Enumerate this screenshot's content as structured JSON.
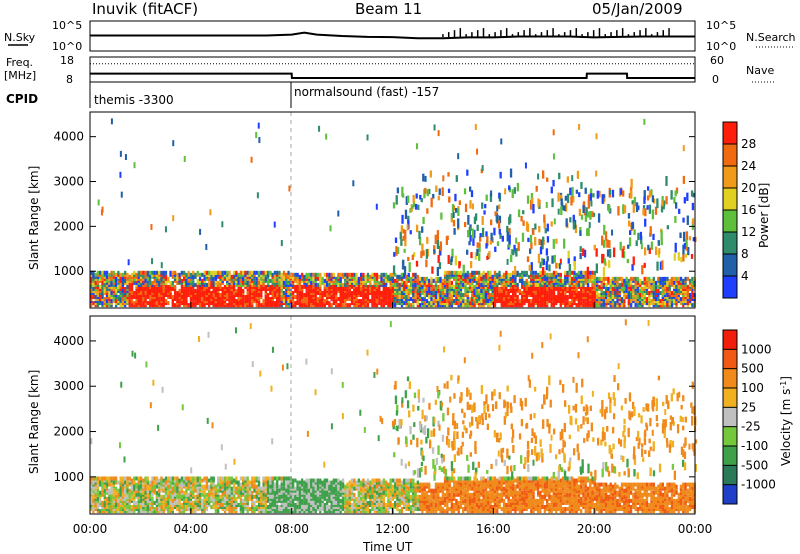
{
  "header": {
    "site": "Inuvik (fitACF)",
    "beam": "Beam 11",
    "date": "05/Jan/2009"
  },
  "chart_data": [
    {
      "type": "line",
      "panel": "noise",
      "left_label": "N.Sky",
      "right_label": "N.Search",
      "left_ticks": [
        "10^5",
        "10^0"
      ],
      "right_ticks": [
        "10^5",
        "10^0"
      ],
      "x_hours": [
        0,
        1,
        2,
        3,
        4,
        5,
        6,
        7,
        8,
        8.5,
        9,
        10,
        11,
        12,
        13,
        14,
        15,
        16,
        17,
        18,
        19,
        20,
        21,
        22,
        23,
        24
      ],
      "sky_level": [
        0.52,
        0.52,
        0.52,
        0.52,
        0.52,
        0.52,
        0.52,
        0.52,
        0.55,
        0.62,
        0.55,
        0.5,
        0.47,
        0.46,
        0.42,
        0.42,
        0.45,
        0.45,
        0.48,
        0.48,
        0.48,
        0.45,
        0.47,
        0.48,
        0.48,
        0.48
      ]
    },
    {
      "type": "line",
      "panel": "frequency",
      "left_label": "Freq.",
      "left_unit": "[MHz]",
      "right_label": "Nave",
      "left_ticks": [
        "18",
        "8"
      ],
      "right_ticks": [
        "60",
        "0"
      ],
      "x_hours": [
        0,
        8,
        8.01,
        19.7,
        19.71,
        21.3,
        21.31,
        24
      ],
      "freq_mhz": [
        11.2,
        11.2,
        9.3,
        9.3,
        11.2,
        11.2,
        9.3,
        9.3
      ],
      "nave": [
        45,
        45,
        45,
        45,
        45,
        45,
        45,
        45
      ]
    },
    {
      "type": "table",
      "panel": "cpid",
      "label": "CPID",
      "segments": [
        {
          "start_hour": 0,
          "end_hour": 8,
          "name": "themis -3300"
        },
        {
          "start_hour": 8,
          "end_hour": 24,
          "name": "normalsound (fast) -157"
        }
      ]
    },
    {
      "type": "heatmap",
      "panel": "power",
      "ylabel": "Slant Range [km]",
      "yticks": [
        1000,
        2000,
        3000,
        4000
      ],
      "ylim": [
        180,
        4550
      ],
      "xlim_hours": [
        0,
        24
      ],
      "colorbar_label": "Power [dB]",
      "colorbar_ticks": [
        4,
        8,
        12,
        16,
        20,
        24,
        28
      ],
      "colors": [
        "#1f3fff",
        "#1f60a8",
        "#2e8b6b",
        "#5dbf3c",
        "#e0d020",
        "#f09a1a",
        "#f06a10",
        "#ff1e0a"
      ]
    },
    {
      "type": "heatmap",
      "panel": "velocity",
      "ylabel": "Slant Range [km]",
      "yticks": [
        1000,
        2000,
        3000,
        4000
      ],
      "ylim": [
        180,
        4550
      ],
      "xlim_hours": [
        0,
        24
      ],
      "xlabel": "Time UT",
      "xticks": [
        "00:00",
        "04:00",
        "08:00",
        "12:00",
        "16:00",
        "20:00",
        "00:00"
      ],
      "colorbar_label": "Velocity [m s^-1]",
      "colorbar_ticks": [
        "1000",
        "500",
        "100",
        "25",
        "-25",
        "-100",
        "-500",
        "-1000"
      ],
      "colors": [
        "#1f3fc8",
        "#2a7a5a",
        "#3fa04a",
        "#73c83c",
        "#c0c0c0",
        "#f0b020",
        "#f08a1a",
        "#f05a14",
        "#f01e0a"
      ]
    }
  ]
}
